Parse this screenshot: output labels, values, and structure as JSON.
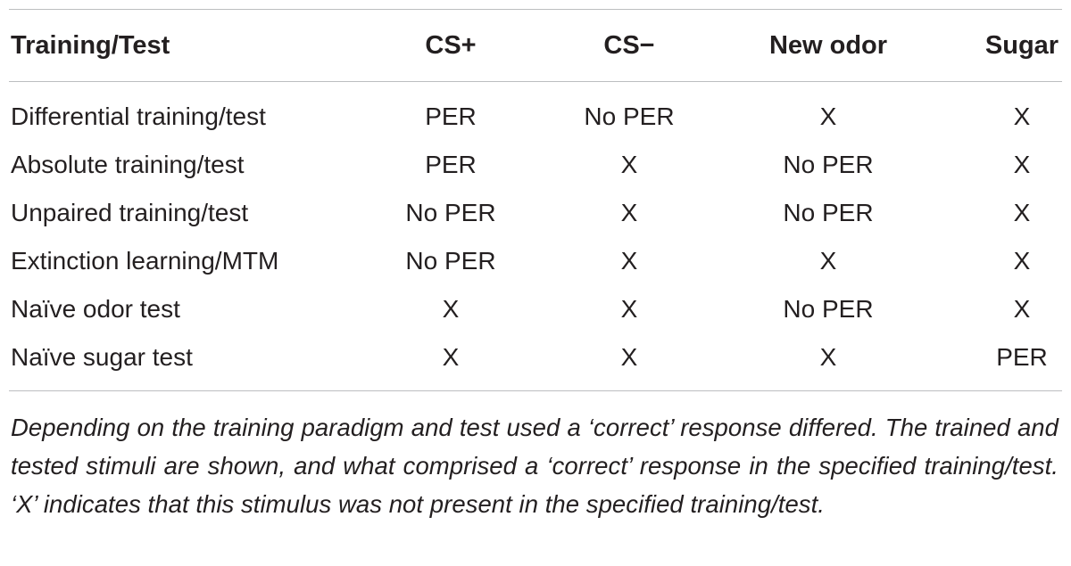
{
  "table": {
    "headers": [
      "Training/Test",
      "CS+",
      "CS−",
      "New odor",
      "Sugar"
    ],
    "rows": [
      [
        "Differential training/test",
        "PER",
        "No PER",
        "X",
        "X"
      ],
      [
        "Absolute training/test",
        "PER",
        "X",
        "No PER",
        "X"
      ],
      [
        "Unpaired training/test",
        "No PER",
        "X",
        "No PER",
        "X"
      ],
      [
        "Extinction learning/MTM",
        "No PER",
        "X",
        "X",
        "X"
      ],
      [
        "Naïve odor test",
        "X",
        "X",
        "No PER",
        "X"
      ],
      [
        "Naïve sugar test",
        "X",
        "X",
        "X",
        "PER"
      ]
    ]
  },
  "footnote": "Depending on the training paradigm and test used a ‘correct’ response differed. The trained and tested stimuli are shown, and what comprised a ‘correct’ response in the specified training/test. ‘X’ indicates that this stimulus was not present in the specified training/test."
}
